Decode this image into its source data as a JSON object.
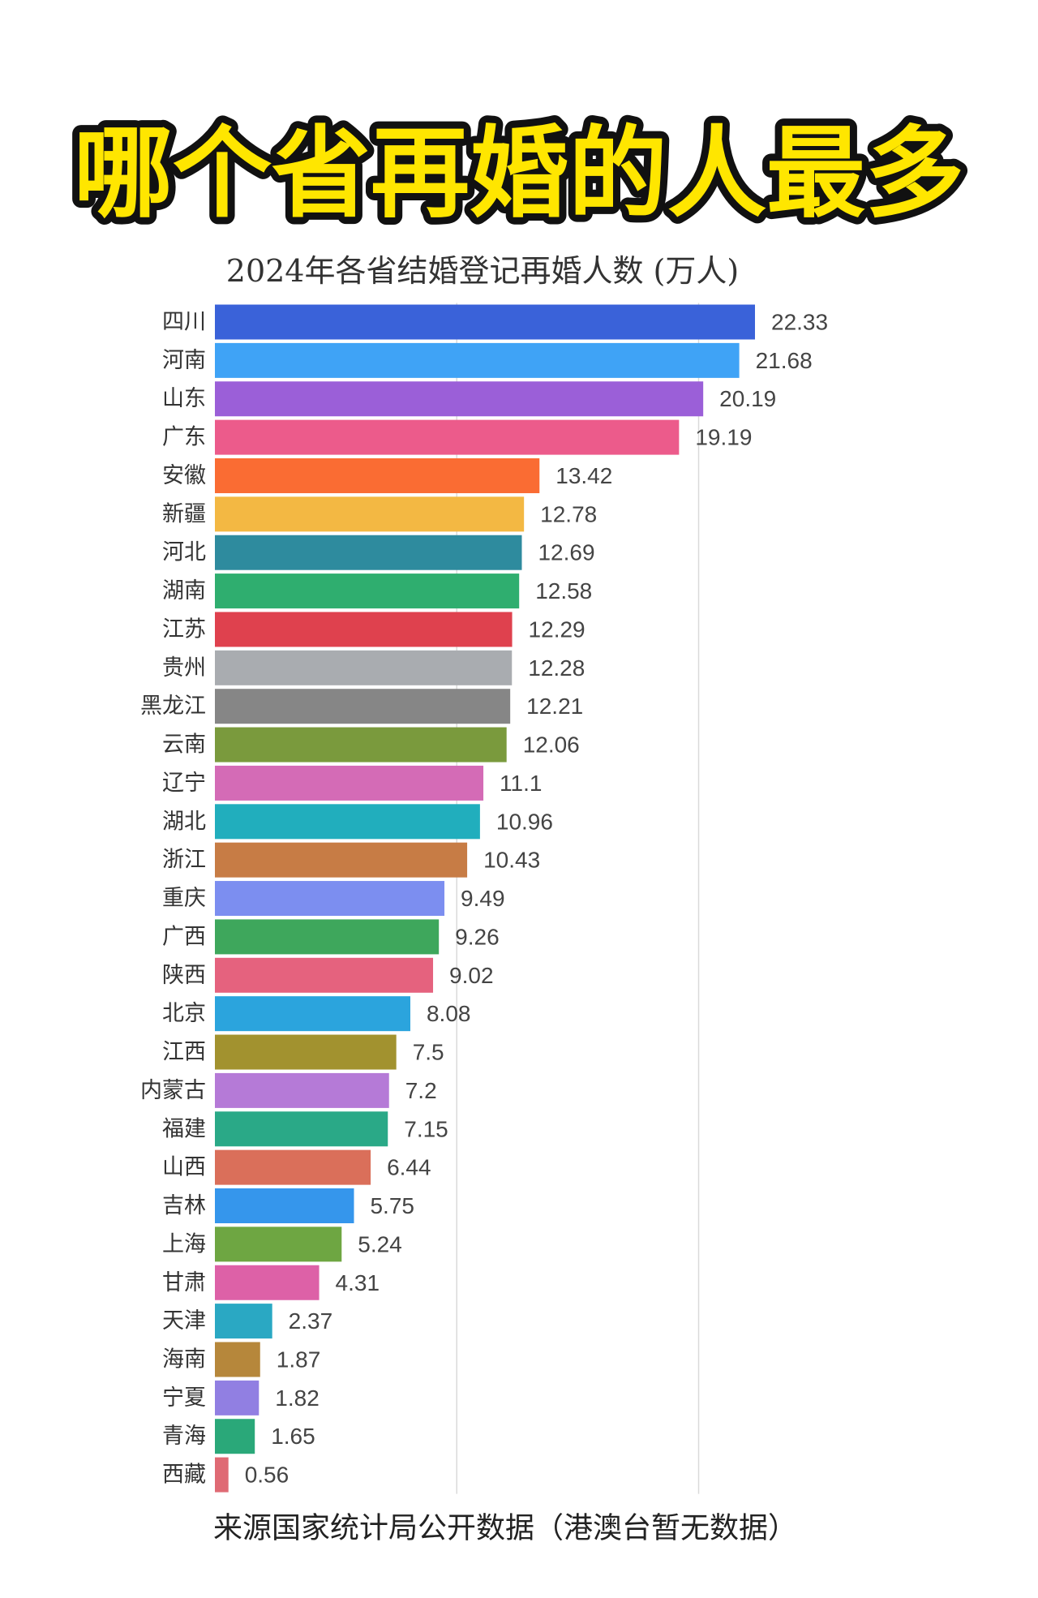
{
  "headline": "哪个省再婚的人最多",
  "chart_data": {
    "type": "bar",
    "horizontal": true,
    "title": "2024年各省结婚登记再婚人数 (万人)",
    "categories": [
      "四川",
      "河南",
      "山东",
      "广东",
      "安徽",
      "新疆",
      "河北",
      "湖南",
      "江苏",
      "贵州",
      "黑龙江",
      "云南",
      "辽宁",
      "湖北",
      "浙江",
      "重庆",
      "广西",
      "陕西",
      "北京",
      "江西",
      "内蒙古",
      "福建",
      "山西",
      "吉林",
      "上海",
      "甘肃",
      "天津",
      "海南",
      "宁夏",
      "青海",
      "西藏"
    ],
    "values": [
      22.33,
      21.68,
      20.19,
      19.19,
      13.42,
      12.78,
      12.69,
      12.58,
      12.29,
      12.28,
      12.21,
      12.06,
      11.1,
      10.96,
      10.43,
      9.49,
      9.26,
      9.02,
      8.08,
      7.5,
      7.2,
      7.15,
      6.44,
      5.75,
      5.24,
      4.31,
      2.37,
      1.87,
      1.82,
      1.65,
      0.56
    ],
    "colors": [
      "#3a62d9",
      "#3fa3f6",
      "#9b5fd8",
      "#ec5b8b",
      "#fa6c33",
      "#f3b843",
      "#2e8b9e",
      "#2fae6f",
      "#df414e",
      "#a9acb0",
      "#868686",
      "#7a9a3d",
      "#d46bb6",
      "#21aebd",
      "#c77c45",
      "#7c8ef0",
      "#3ea75c",
      "#e5627e",
      "#2ba4dd",
      "#a2922f",
      "#b57ad7",
      "#2aa987",
      "#da6f5a",
      "#3596ec",
      "#6ea642",
      "#dd61a7",
      "#2aa8c3",
      "#b6873b",
      "#917fe2",
      "#2aa879",
      "#df6a74"
    ],
    "xlim": [
      0,
      22.33
    ],
    "x_gridlines": [
      10,
      20
    ],
    "grid": true
  },
  "source_note": "来源国家统计局公开数据（港澳台暂无数据）"
}
